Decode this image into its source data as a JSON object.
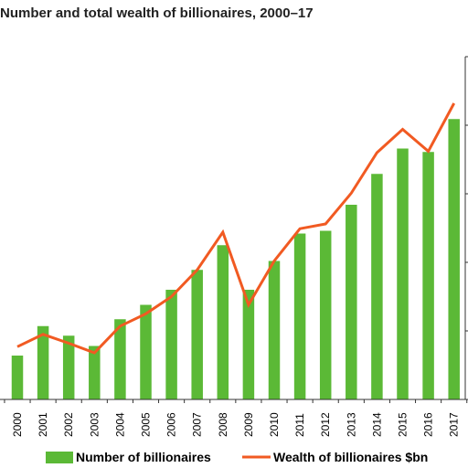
{
  "chart_data": {
    "type": "bar",
    "title": "Number and total wealth of billionaires, 2000–17",
    "categories": [
      "2000",
      "2001",
      "2002",
      "2003",
      "2004",
      "2005",
      "2006",
      "2007",
      "2008",
      "2009",
      "2010",
      "2011",
      "2012",
      "2013",
      "2014",
      "2015",
      "2016",
      "2017"
    ],
    "series": [
      {
        "name": "Number of billionaires",
        "type": "bar",
        "color": "#5bb936",
        "values": [
          0.64,
          1.07,
          0.93,
          0.78,
          1.17,
          1.38,
          1.6,
          1.89,
          2.25,
          1.6,
          2.02,
          2.42,
          2.46,
          2.84,
          3.29,
          3.66,
          3.61,
          4.09
        ]
      },
      {
        "name": "Wealth of billionaires $bn",
        "type": "line",
        "color": "#f15a22",
        "values": [
          0.77,
          0.95,
          0.82,
          0.68,
          1.07,
          1.25,
          1.5,
          1.89,
          2.44,
          1.38,
          2.02,
          2.49,
          2.56,
          3.01,
          3.6,
          3.94,
          3.62,
          4.32
        ]
      }
    ],
    "ylim": [
      0,
      5
    ],
    "y_tick_labels_visible": false,
    "gridlines": false,
    "legend_position": "bottom"
  }
}
